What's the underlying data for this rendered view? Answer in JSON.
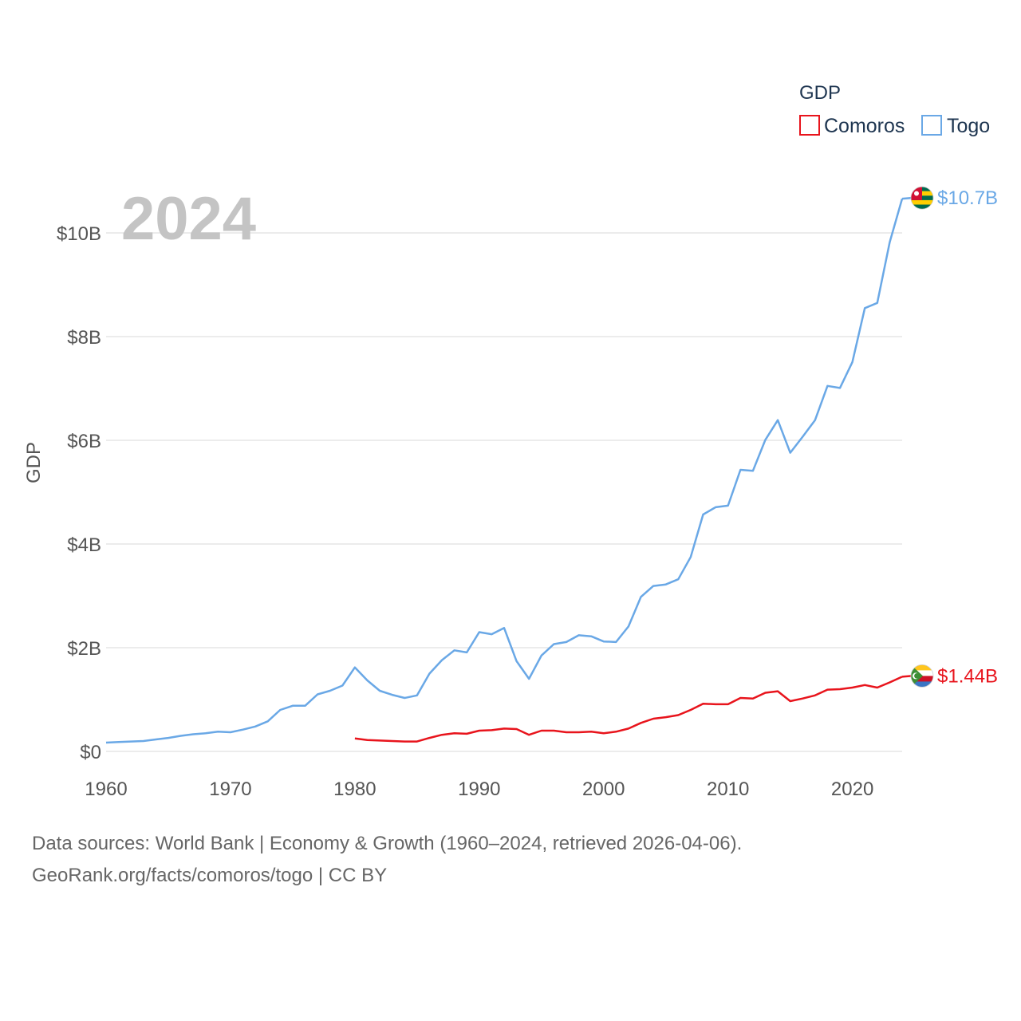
{
  "chart_data": {
    "type": "line",
    "title": "",
    "year_highlight": "2024",
    "xlabel": "",
    "ylabel": "GDP",
    "xlim": [
      1960,
      2024
    ],
    "ylim": [
      0,
      10.7
    ],
    "x_ticks": [
      1960,
      1970,
      1980,
      1990,
      2000,
      2010,
      2020
    ],
    "x_tick_labels": [
      "1960",
      "1970",
      "1980",
      "1990",
      "2000",
      "2010",
      "2020"
    ],
    "y_ticks": [
      0,
      2,
      4,
      6,
      8,
      10
    ],
    "y_tick_labels": [
      "$0",
      "$2B",
      "$4B",
      "$6B",
      "$8B",
      "$10B"
    ],
    "grid": true,
    "legend": {
      "title": "GDP",
      "position": "top-right"
    },
    "series": [
      {
        "name": "Comoros",
        "color": "#e8141c",
        "end_label": "$1.44B",
        "flag_icon": "comoros-flag-icon",
        "x": [
          1980,
          1981,
          1982,
          1983,
          1984,
          1985,
          1986,
          1987,
          1988,
          1989,
          1990,
          1991,
          1992,
          1993,
          1994,
          1995,
          1996,
          1997,
          1998,
          1999,
          2000,
          2001,
          2002,
          2003,
          2004,
          2005,
          2006,
          2007,
          2008,
          2009,
          2010,
          2011,
          2012,
          2013,
          2014,
          2015,
          2016,
          2017,
          2018,
          2019,
          2020,
          2021,
          2022,
          2023,
          2024
        ],
        "values": [
          0.25,
          0.22,
          0.21,
          0.2,
          0.19,
          0.19,
          0.26,
          0.32,
          0.35,
          0.34,
          0.4,
          0.41,
          0.44,
          0.43,
          0.32,
          0.4,
          0.4,
          0.37,
          0.37,
          0.38,
          0.35,
          0.38,
          0.44,
          0.55,
          0.63,
          0.66,
          0.7,
          0.8,
          0.92,
          0.91,
          0.91,
          1.03,
          1.02,
          1.13,
          1.16,
          0.97,
          1.02,
          1.08,
          1.19,
          1.2,
          1.23,
          1.28,
          1.23,
          1.33,
          1.44
        ]
      },
      {
        "name": "Togo",
        "color": "#6aa8e6",
        "end_label": "$10.7B",
        "flag_icon": "togo-flag-icon",
        "x": [
          1960,
          1961,
          1962,
          1963,
          1964,
          1965,
          1966,
          1967,
          1968,
          1969,
          1970,
          1971,
          1972,
          1973,
          1974,
          1975,
          1976,
          1977,
          1978,
          1979,
          1980,
          1981,
          1982,
          1983,
          1984,
          1985,
          1986,
          1987,
          1988,
          1989,
          1990,
          1991,
          1992,
          1993,
          1994,
          1995,
          1996,
          1997,
          1998,
          1999,
          2000,
          2001,
          2002,
          2003,
          2004,
          2005,
          2006,
          2007,
          2008,
          2009,
          2010,
          2011,
          2012,
          2013,
          2014,
          2015,
          2016,
          2017,
          2018,
          2019,
          2020,
          2021,
          2022,
          2023,
          2024
        ],
        "values": [
          0.17,
          0.18,
          0.19,
          0.2,
          0.23,
          0.26,
          0.3,
          0.33,
          0.35,
          0.38,
          0.37,
          0.42,
          0.48,
          0.58,
          0.8,
          0.88,
          0.88,
          1.1,
          1.17,
          1.27,
          1.62,
          1.37,
          1.17,
          1.09,
          1.03,
          1.08,
          1.5,
          1.76,
          1.95,
          1.91,
          2.3,
          2.26,
          2.38,
          1.74,
          1.4,
          1.85,
          2.07,
          2.11,
          2.24,
          2.22,
          2.12,
          2.11,
          2.41,
          2.98,
          3.19,
          3.22,
          3.32,
          3.75,
          4.57,
          4.71,
          4.74,
          5.43,
          5.41,
          6.01,
          6.39,
          5.76,
          6.07,
          6.39,
          7.05,
          7.01,
          7.51,
          8.55,
          8.65,
          9.82,
          10.66
        ]
      }
    ]
  },
  "footer": {
    "line1": "Data sources: World Bank | Economy & Growth (1960–2024, retrieved 2026-04-06).",
    "line2": "GeoRank.org/facts/comoros/togo | CC BY"
  }
}
